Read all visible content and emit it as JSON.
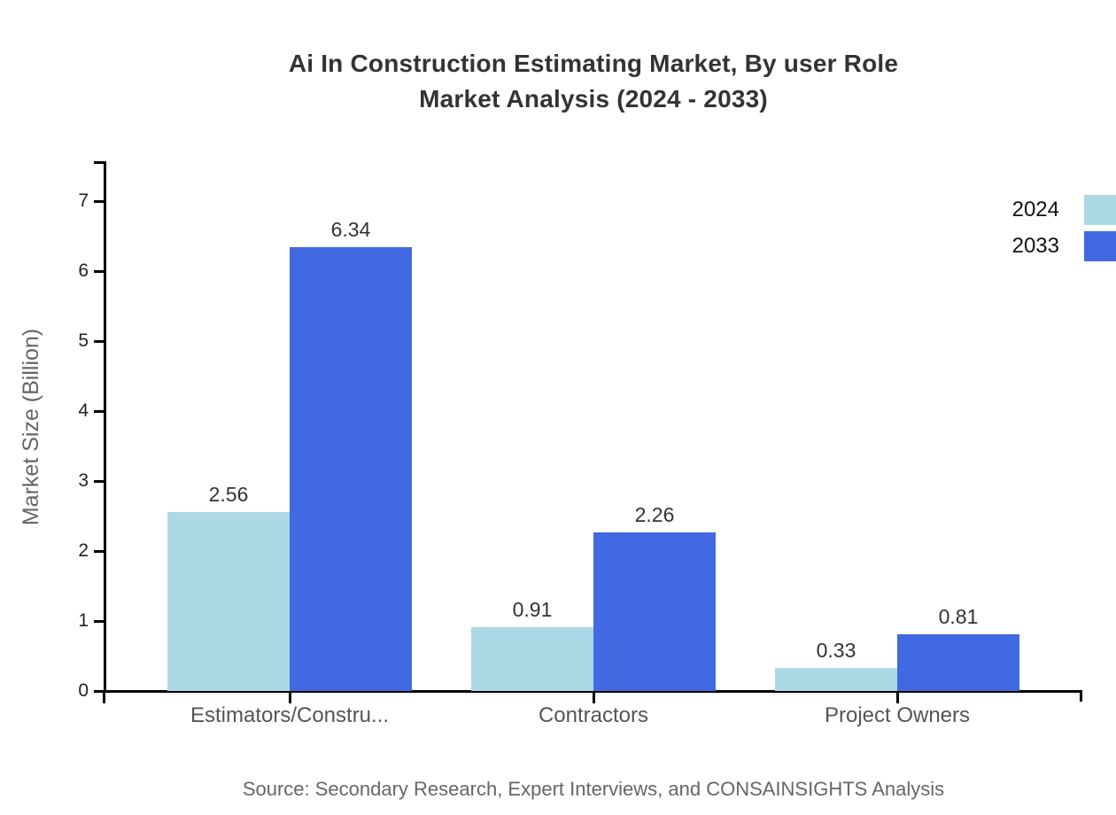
{
  "title": {
    "line1": "Ai In Construction Estimating Market, By user Role",
    "line2": "Market Analysis (2024 - 2033)"
  },
  "ylabel": "Market Size (Billion)",
  "source": "Source: Secondary Research, Expert Interviews, and CONSAINSIGHTS Analysis",
  "colors": {
    "series_2024": "#ADD8E6",
    "series_2033": "#4169E1",
    "axis": "#000000",
    "title_text": "#333333",
    "value_text": "#333333",
    "category_text": "#555555",
    "source_text": "#666666"
  },
  "chart_data": {
    "type": "bar",
    "title": "Ai In Construction Estimating Market, By user Role Market Analysis (2024 - 2033)",
    "categories": [
      "Estimators/Constru...",
      "Contractors",
      "Project Owners"
    ],
    "series": [
      {
        "name": "2024",
        "color": "#ADD8E6",
        "values": [
          2.56,
          0.91,
          0.33
        ]
      },
      {
        "name": "2033",
        "color": "#4169E1",
        "values": [
          6.34,
          2.26,
          0.81
        ]
      }
    ],
    "xlabel": "",
    "ylabel": "Market Size (Billion)",
    "ylim": [
      0,
      7
    ],
    "yticks": [
      0,
      1,
      2,
      3,
      4,
      5,
      6,
      7
    ],
    "grid": false,
    "legend_position": "top-right",
    "value_labels": true
  }
}
